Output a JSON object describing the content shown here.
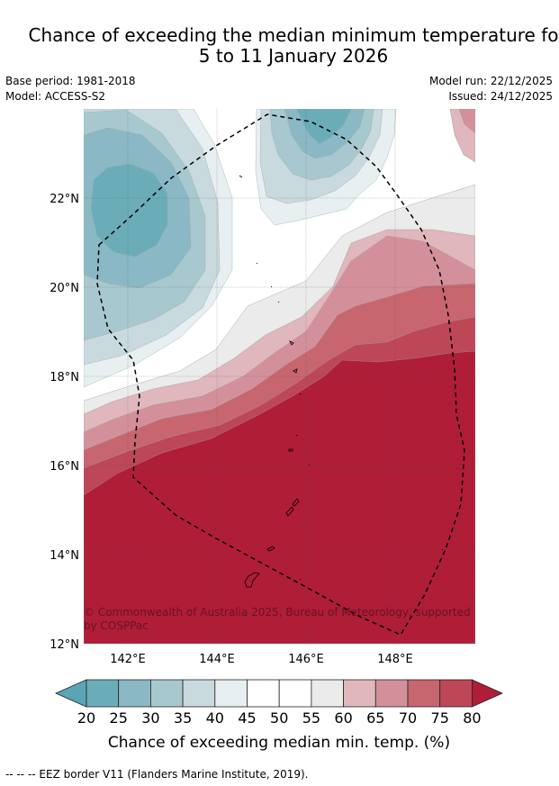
{
  "title": {
    "line1": "Chance of exceeding the median minimum temperature fo",
    "line2": "5 to 11 January 2026"
  },
  "meta": {
    "base_period": "Base period: 1981-2018",
    "model": "Model: ACCESS-S2",
    "model_run": "Model run: 22/12/2025",
    "issued": "Issued: 24/12/2025"
  },
  "map": {
    "lat_labels": [
      "22°N",
      "20°N",
      "18°N",
      "16°N",
      "14°N",
      "12°N"
    ],
    "lon_labels": [
      "142°E",
      "144°E",
      "146°E",
      "148°E"
    ],
    "copyright_line1": "© Commonwealth of Australia 2025, Bureau of Meteorology, supported",
    "copyright_line2": "by COSPPac",
    "colors": {
      "lt20": "#5aa5b3",
      "b20_25": "#6aadb9",
      "b25_30": "#8ab8c4",
      "b30_35": "#a8c8cf",
      "b35_40": "#c9dadf",
      "b40_45": "#e8eff1",
      "b45_55": "#ffffff",
      "b55_60": "#ecebec",
      "b60_65": "#dfb7bd",
      "b65_70": "#d4909a",
      "b70_75": "#c8666f",
      "b75_80": "#bd4756",
      "gt80": "#b01d37"
    }
  },
  "colorbar": {
    "tick_labels": [
      "20",
      "25",
      "30",
      "35",
      "40",
      "45",
      "50",
      "55",
      "60",
      "65",
      "70",
      "75",
      "80"
    ],
    "label": "Chance of exceeding median min. temp. (%)"
  },
  "footnote": "--  --  -- EEZ border V11 (Flanders Marine Institute, 2019)."
}
